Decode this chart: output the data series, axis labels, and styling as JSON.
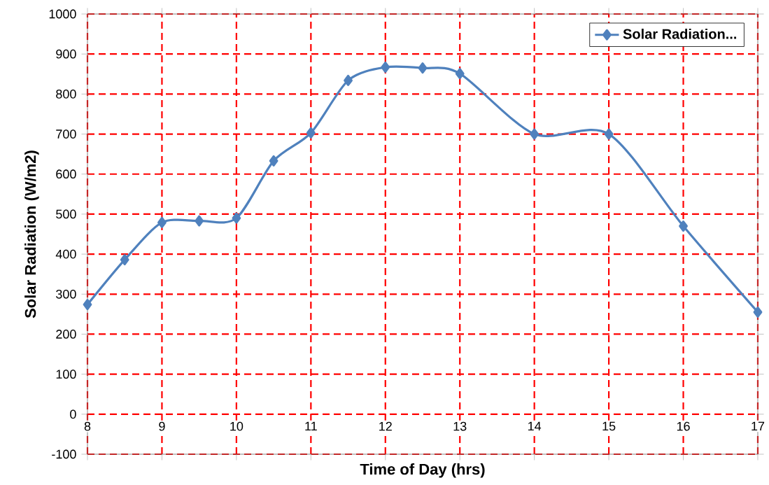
{
  "chart_data": {
    "type": "line",
    "xlabel": "Time of Day (hrs)",
    "ylabel": "Solar Radiation (W/m2)",
    "x": [
      8,
      8.5,
      9,
      9.5,
      10,
      10.5,
      11,
      11.5,
      12,
      12.5,
      13,
      14,
      15,
      16,
      17
    ],
    "series": [
      {
        "name": "Solar Radiation...",
        "color": "#4f81bd",
        "values": [
          274,
          386,
          479,
          483,
          490,
          633,
          703,
          834,
          867,
          865,
          851,
          700,
          700,
          470,
          255
        ]
      }
    ],
    "xlim": [
      8,
      17
    ],
    "xticks": [
      8,
      9,
      10,
      11,
      12,
      13,
      14,
      15,
      16,
      17
    ],
    "ylim": [
      -100,
      1000
    ],
    "yticks": [
      -100,
      0,
      100,
      200,
      300,
      400,
      500,
      600,
      700,
      800,
      900,
      1000
    ],
    "grid": true,
    "legend": "top right",
    "marker": "diamond",
    "line_style": "solid"
  }
}
